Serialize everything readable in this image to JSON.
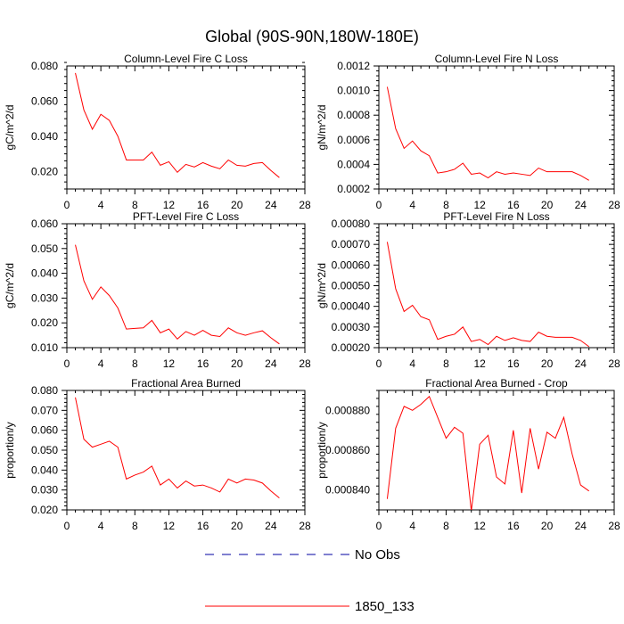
{
  "title": "Global (90S-90N,180W-180E)",
  "chart_data": [
    {
      "type": "line",
      "title": "Column-Level Fire C Loss",
      "ylabel": "gC/m^2/d",
      "xlim": [
        0,
        28
      ],
      "ylim": [
        0.01,
        0.08
      ],
      "xticks": [
        0,
        4,
        8,
        12,
        16,
        20,
        24,
        28
      ],
      "xtick_labels": [
        "0",
        "4",
        "8",
        "12",
        "16",
        "20",
        "24",
        "28"
      ],
      "yticks": [
        0.02,
        0.04,
        0.06,
        0.08
      ],
      "ytick_labels": [
        "0.020",
        "0.040",
        "0.060",
        "0.080"
      ],
      "series": [
        {
          "name": "1850_133",
          "color": "#ff0000",
          "x": [
            1,
            2,
            3,
            4,
            5,
            6,
            7,
            8,
            9,
            10,
            11,
            12,
            13,
            14,
            15,
            16,
            17,
            18,
            19,
            20,
            21,
            22,
            23,
            24,
            25
          ],
          "values": [
            0.076,
            0.055,
            0.044,
            0.0525,
            0.049,
            0.04,
            0.0265,
            0.0265,
            0.0265,
            0.031,
            0.0235,
            0.0255,
            0.0195,
            0.024,
            0.0225,
            0.025,
            0.023,
            0.0215,
            0.0265,
            0.0235,
            0.023,
            0.0245,
            0.025,
            0.0205,
            0.0165
          ]
        }
      ]
    },
    {
      "type": "line",
      "title": "Column-Level Fire N Loss",
      "ylabel": "gN/m^2/d",
      "xlim": [
        0,
        28
      ],
      "ylim": [
        0.0002,
        0.0012
      ],
      "xticks": [
        0,
        4,
        8,
        12,
        16,
        20,
        24,
        28
      ],
      "xtick_labels": [
        "0",
        "4",
        "8",
        "12",
        "16",
        "20",
        "24",
        "28"
      ],
      "yticks": [
        0.0002,
        0.0004,
        0.0006,
        0.0008,
        0.001,
        0.0012
      ],
      "ytick_labels": [
        "0.0002",
        "0.0004",
        "0.0006",
        "0.0008",
        "0.0010",
        "0.0012"
      ],
      "series": [
        {
          "name": "1850_133",
          "color": "#ff0000",
          "x": [
            1,
            2,
            3,
            4,
            5,
            6,
            7,
            8,
            9,
            10,
            11,
            12,
            13,
            14,
            15,
            16,
            17,
            18,
            19,
            20,
            21,
            22,
            23,
            24,
            25
          ],
          "values": [
            0.00103,
            0.00069,
            0.00053,
            0.00059,
            0.00051,
            0.00047,
            0.00033,
            0.00034,
            0.00036,
            0.00041,
            0.00032,
            0.00033,
            0.00029,
            0.00034,
            0.00032,
            0.00033,
            0.00032,
            0.00031,
            0.00037,
            0.00034,
            0.00034,
            0.00034,
            0.00034,
            0.00031,
            0.00027
          ]
        }
      ]
    },
    {
      "type": "line",
      "title": "PFT-Level Fire C Loss",
      "ylabel": "gC/m^2/d",
      "xlim": [
        0,
        28
      ],
      "ylim": [
        0.01,
        0.06
      ],
      "xticks": [
        0,
        4,
        8,
        12,
        16,
        20,
        24,
        28
      ],
      "xtick_labels": [
        "0",
        "4",
        "8",
        "12",
        "16",
        "20",
        "24",
        "28"
      ],
      "yticks": [
        0.01,
        0.02,
        0.03,
        0.04,
        0.05,
        0.06
      ],
      "ytick_labels": [
        "0.010",
        "0.020",
        "0.030",
        "0.040",
        "0.050",
        "0.060"
      ],
      "series": [
        {
          "name": "1850_133",
          "color": "#ff0000",
          "x": [
            1,
            2,
            3,
            4,
            5,
            6,
            7,
            8,
            9,
            10,
            11,
            12,
            13,
            14,
            15,
            16,
            17,
            18,
            19,
            20,
            21,
            22,
            23,
            24,
            25
          ],
          "values": [
            0.0515,
            0.037,
            0.0295,
            0.0345,
            0.031,
            0.026,
            0.0175,
            0.0178,
            0.018,
            0.021,
            0.016,
            0.0175,
            0.0135,
            0.0165,
            0.015,
            0.017,
            0.015,
            0.0145,
            0.018,
            0.016,
            0.015,
            0.016,
            0.0168,
            0.014,
            0.0115
          ]
        }
      ]
    },
    {
      "type": "line",
      "title": "PFT-Level Fire N Loss",
      "ylabel": "gN/m^2/d",
      "xlim": [
        0,
        28
      ],
      "ylim": [
        0.0002,
        0.0008
      ],
      "xticks": [
        0,
        4,
        8,
        12,
        16,
        20,
        24,
        28
      ],
      "xtick_labels": [
        "0",
        "4",
        "8",
        "12",
        "16",
        "20",
        "24",
        "28"
      ],
      "yticks": [
        0.0002,
        0.0003,
        0.0004,
        0.0005,
        0.0006,
        0.0007,
        0.0008
      ],
      "ytick_labels": [
        "0.00020",
        "0.00030",
        "0.00040",
        "0.00050",
        "0.00060",
        "0.00070",
        "0.00080"
      ],
      "series": [
        {
          "name": "1850_133",
          "color": "#ff0000",
          "x": [
            1,
            2,
            3,
            4,
            5,
            6,
            7,
            8,
            9,
            10,
            11,
            12,
            13,
            14,
            15,
            16,
            17,
            18,
            19,
            20,
            21,
            22,
            23,
            24,
            25
          ],
          "values": [
            0.000712,
            0.000485,
            0.000375,
            0.000405,
            0.00035,
            0.000335,
            0.00024,
            0.000255,
            0.000265,
            0.0003,
            0.00023,
            0.00024,
            0.000215,
            0.000255,
            0.000235,
            0.000248,
            0.000235,
            0.00023,
            0.000275,
            0.000255,
            0.00025,
            0.00025,
            0.00025,
            0.000235,
            0.000205
          ]
        }
      ]
    },
    {
      "type": "line",
      "title": "Fractional Area Burned",
      "ylabel": "proportion/y",
      "xlim": [
        0,
        28
      ],
      "ylim": [
        0.02,
        0.08
      ],
      "xticks": [
        0,
        4,
        8,
        12,
        16,
        20,
        24,
        28
      ],
      "xtick_labels": [
        "0",
        "4",
        "8",
        "12",
        "16",
        "20",
        "24",
        "28"
      ],
      "yticks": [
        0.02,
        0.03,
        0.04,
        0.05,
        0.06,
        0.07,
        0.08
      ],
      "ytick_labels": [
        "0.020",
        "0.030",
        "0.040",
        "0.050",
        "0.060",
        "0.070",
        "0.080"
      ],
      "series": [
        {
          "name": "1850_133",
          "color": "#ff0000",
          "x": [
            1,
            2,
            3,
            4,
            5,
            6,
            7,
            8,
            9,
            10,
            11,
            12,
            13,
            14,
            15,
            16,
            17,
            18,
            19,
            20,
            21,
            22,
            23,
            24,
            25
          ],
          "values": [
            0.0765,
            0.0555,
            0.0515,
            0.053,
            0.0545,
            0.0515,
            0.0355,
            0.0375,
            0.039,
            0.042,
            0.0325,
            0.0355,
            0.031,
            0.0345,
            0.032,
            0.0325,
            0.031,
            0.029,
            0.0355,
            0.0335,
            0.0355,
            0.035,
            0.0335,
            0.0295,
            0.026
          ]
        }
      ]
    },
    {
      "type": "line",
      "title": "Fractional Area Burned - Crop",
      "ylabel": "proportion/y",
      "xlim": [
        0,
        28
      ],
      "ylim": [
        0.00083,
        0.00089
      ],
      "xticks": [
        0,
        4,
        8,
        12,
        16,
        20,
        24,
        28
      ],
      "xtick_labels": [
        "0",
        "4",
        "8",
        "12",
        "16",
        "20",
        "24",
        "28"
      ],
      "yticks": [
        0.00084,
        0.00086,
        0.00088
      ],
      "ytick_labels": [
        "0.000840",
        "0.000860",
        "0.000880"
      ],
      "series": [
        {
          "name": "1850_133",
          "color": "#ff0000",
          "x": [
            1,
            2,
            3,
            4,
            5,
            6,
            7,
            8,
            9,
            10,
            11,
            12,
            13,
            14,
            15,
            16,
            17,
            18,
            19,
            20,
            21,
            22,
            23,
            24,
            25
          ],
          "values": [
            0.0008355,
            0.000871,
            0.000882,
            0.00088,
            0.000883,
            0.000887,
            0.0008765,
            0.000866,
            0.0008715,
            0.0008685,
            0.0008295,
            0.000863,
            0.0008675,
            0.0008465,
            0.000843,
            0.00087,
            0.0008385,
            0.000871,
            0.0008505,
            0.000869,
            0.000866,
            0.0008765,
            0.000858,
            0.0008425,
            0.0008395
          ]
        }
      ]
    }
  ],
  "legend": [
    {
      "label": "No Obs",
      "color": "#0000a0",
      "dash": "dashed"
    },
    {
      "label": "1850_133",
      "color": "#ff0000",
      "dash": "solid"
    }
  ]
}
